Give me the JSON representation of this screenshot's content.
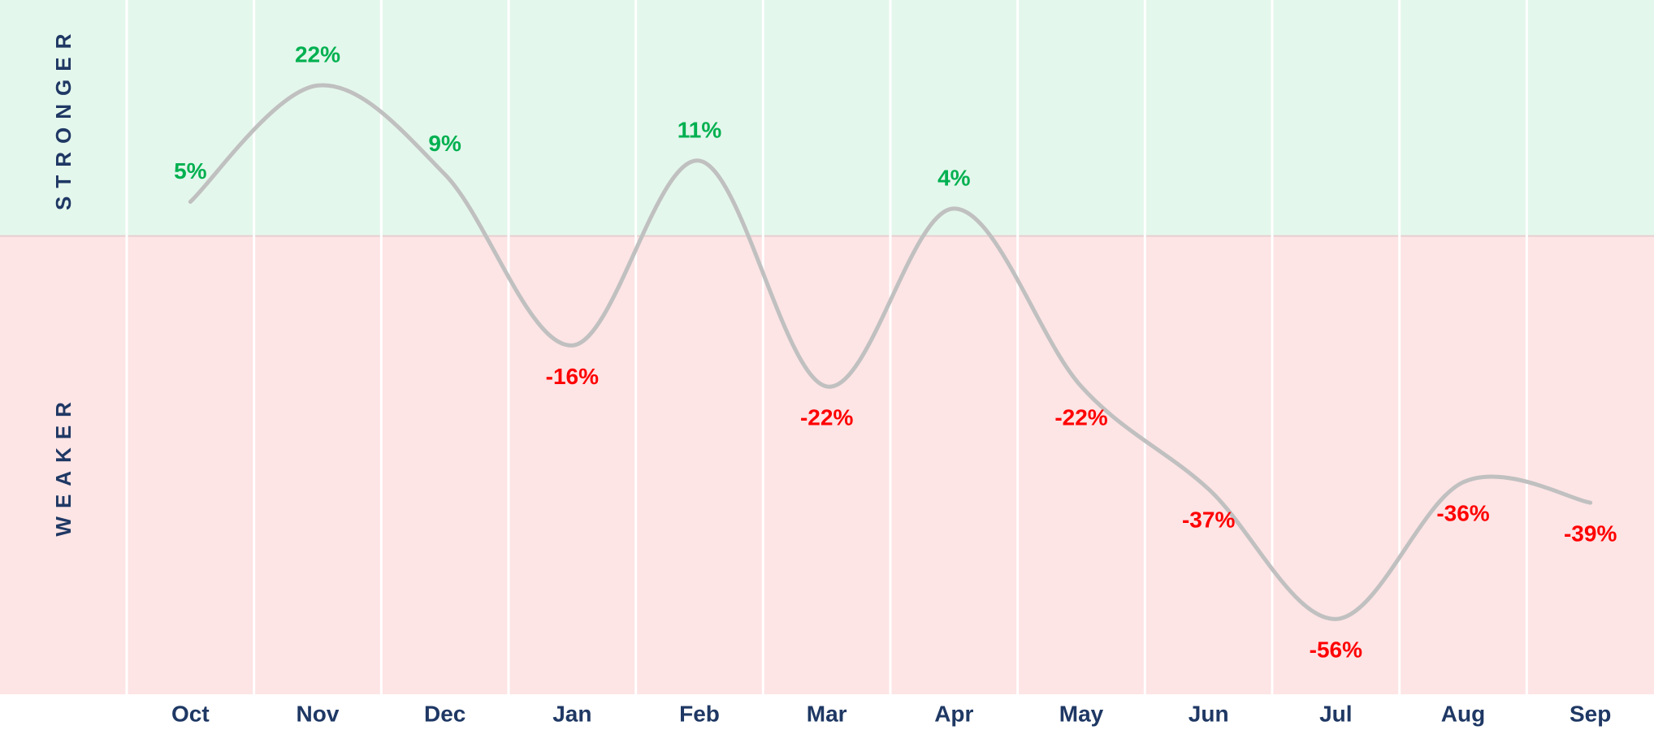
{
  "chart_data": {
    "type": "line",
    "categories": [
      "Oct",
      "Nov",
      "Dec",
      "Jan",
      "Feb",
      "Mar",
      "Apr",
      "May",
      "Jun",
      "Jul",
      "Aug",
      "Sep"
    ],
    "values": [
      5,
      22,
      9,
      -16,
      11,
      -22,
      4,
      -22,
      -37,
      -56,
      -36,
      -39
    ],
    "value_labels": [
      "5%",
      "22%",
      "9%",
      "-16%",
      "11%",
      "-22%",
      "4%",
      "-22%",
      "-37%",
      "-56%",
      "-36%",
      "-39%"
    ],
    "color": "#c0c0c0",
    "positive_color": "#00b050",
    "negative_color": "#ff0000",
    "regions": [
      "STRONGER",
      "WEAKER"
    ],
    "ylim": [
      -67,
      34.5
    ]
  }
}
